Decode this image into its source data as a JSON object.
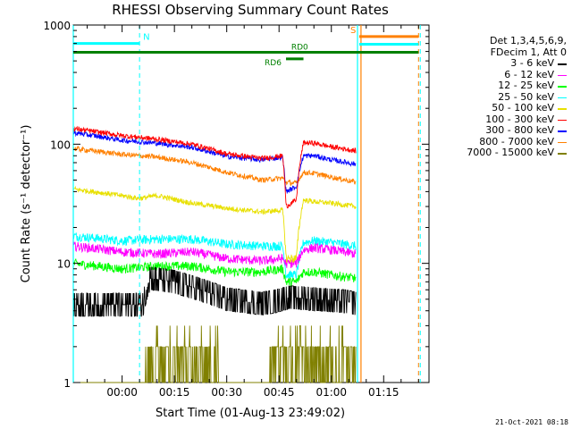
{
  "chart_data": {
    "type": "line",
    "title": "RHESSI Observing Summary Count Rates",
    "xlabel": "Start Time (01-Aug-13 23:49:02)",
    "ylabel": "Count Rate (s⁻¹ detector⁻¹)",
    "yscale": "log",
    "ylim": [
      1,
      1000
    ],
    "xlim_min": [
      -14,
      88
    ],
    "x_unit": "minutes after 00:00",
    "x_ticks": [
      {
        "label": "00:00",
        "x": 0
      },
      {
        "label": "00:15",
        "x": 15
      },
      {
        "label": "00:30",
        "x": 30
      },
      {
        "label": "00:45",
        "x": 45
      },
      {
        "label": "01:00",
        "x": 60
      },
      {
        "label": "01:15",
        "x": 75
      }
    ],
    "y_ticks": [
      {
        "label": "1",
        "value": 1
      },
      {
        "label": "10",
        "value": 10
      },
      {
        "label": "100",
        "value": 100
      },
      {
        "label": "1000",
        "value": 1000
      }
    ],
    "legend_header": [
      "Det 1,3,4,5,6,9,",
      "FDecim 1, Att 0"
    ],
    "legend_position": "right, outside plot",
    "series": [
      {
        "name": "3 - 6 keV",
        "color": "#000000",
        "x": [
          -14,
          6,
          8,
          15,
          30,
          40,
          44,
          48,
          55,
          60,
          64,
          67
        ],
        "y": [
          4.5,
          4.5,
          7.5,
          7,
          5,
          4.6,
          4.8,
          5.2,
          5,
          4.9,
          4.8,
          4.6
        ]
      },
      {
        "name": "6 - 12 keV",
        "color": "#ff00ff",
        "x": [
          -14,
          0,
          10,
          20,
          30,
          40,
          46,
          47,
          50,
          52,
          55,
          60,
          67
        ],
        "y": [
          14,
          12.5,
          12,
          12.5,
          11,
          10.5,
          11,
          10,
          10,
          13,
          13.5,
          13,
          12
        ]
      },
      {
        "name": "12 - 25 keV",
        "color": "#00ff00",
        "x": [
          -14,
          0,
          10,
          20,
          30,
          40,
          46,
          47,
          50,
          52,
          55,
          60,
          67
        ],
        "y": [
          10,
          9,
          9.5,
          9.5,
          8.5,
          8.5,
          9,
          7,
          7,
          8.5,
          8.5,
          8,
          7.5
        ]
      },
      {
        "name": "25 - 50 keV",
        "color": "#00ffff",
        "x": [
          -14,
          0,
          10,
          20,
          30,
          40,
          46,
          47,
          50,
          52,
          55,
          60,
          67
        ],
        "y": [
          17,
          15.5,
          16,
          16,
          14.5,
          14,
          14,
          8,
          8,
          15,
          15.5,
          15,
          14
        ]
      },
      {
        "name": "50 - 100 keV",
        "color": "#e8e000",
        "x": [
          -14,
          0,
          5,
          10,
          20,
          30,
          40,
          46,
          47,
          50,
          52,
          55,
          60,
          67
        ],
        "y": [
          42,
          37,
          35,
          37,
          32,
          29,
          27,
          28,
          11,
          11,
          34,
          33,
          32,
          30
        ]
      },
      {
        "name": "100 - 300 keV",
        "color": "#ff0000",
        "x": [
          -14,
          0,
          10,
          20,
          30,
          40,
          46,
          47,
          50,
          52,
          55,
          60,
          67
        ],
        "y": [
          135,
          118,
          110,
          100,
          83,
          76,
          80,
          30,
          34,
          103,
          102,
          95,
          88
        ]
      },
      {
        "name": "300 - 800 keV",
        "color": "#0000ff",
        "x": [
          -14,
          0,
          10,
          20,
          30,
          40,
          46,
          47,
          50,
          52,
          55,
          60,
          67
        ],
        "y": [
          125,
          108,
          102,
          94,
          79,
          74,
          78,
          40,
          44,
          80,
          80,
          74,
          68
        ]
      },
      {
        "name": "800 - 7000 keV",
        "color": "#ff8000",
        "x": [
          -14,
          0,
          10,
          20,
          30,
          40,
          46,
          47,
          50,
          52,
          55,
          60,
          67
        ],
        "y": [
          92,
          82,
          78,
          70,
          58,
          50,
          52,
          48,
          47,
          58,
          57,
          53,
          48
        ]
      },
      {
        "name": "7000 - 15000 keV",
        "color": "#808000",
        "x": [
          -14,
          6,
          7,
          15,
          20,
          27,
          28,
          42,
          43,
          57,
          58,
          67
        ],
        "y": [
          1,
          1,
          2,
          2,
          1.8,
          1.8,
          1,
          1,
          2,
          2,
          1.8,
          1.8
        ]
      }
    ],
    "annotations": {
      "saa_flags": [
        {
          "label": "N",
          "color": "#00ffff",
          "x_start": -14,
          "x_end": 5,
          "level": 700
        },
        {
          "label": "S",
          "color": "#ff8000",
          "x_start": 68,
          "x_end": 85,
          "level": 800
        },
        {
          "label": "",
          "color": "#00ffff",
          "x_start": 68,
          "x_end": 85,
          "level": 690
        }
      ],
      "rd_flags": [
        {
          "label": "RD0",
          "color": "#008000",
          "x_start": -14,
          "x_end": 85,
          "level": 590
        },
        {
          "label": "RD6",
          "color": "#008000",
          "x_start": 47,
          "x_end": 52,
          "level": 520
        }
      ],
      "vlines": [
        {
          "x": -14,
          "color": "#00ffff",
          "style": "solid"
        },
        {
          "x": 5,
          "color": "#00ffff",
          "style": "dashed"
        },
        {
          "x": 67.5,
          "color": "#00ffff",
          "style": "solid"
        },
        {
          "x": 68.5,
          "color": "#ff8000",
          "style": "solid"
        },
        {
          "x": 85,
          "color": "#ff8000",
          "style": "dashed"
        },
        {
          "x": 85.5,
          "color": "#00ffff",
          "style": "dashed"
        }
      ]
    }
  },
  "datestamp": "21-Oct-2021 08:18"
}
